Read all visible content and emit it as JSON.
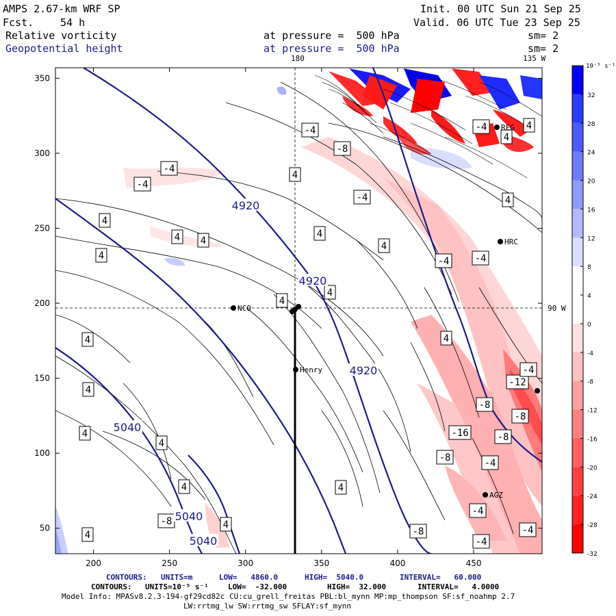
{
  "header": {
    "model": "AMPS 2.67-km WRF SP",
    "fcst_label": "Fcst.",
    "fcst_value": "54 h",
    "init": "Init. 00 UTC Sun 21 Sep 25",
    "valid": "Valid. 06 UTC Tue 23 Sep 25",
    "field1": "Relative vorticity",
    "field1_level": "at pressure =  500 hPa",
    "field1_sm": "sm= 2",
    "field2": "Geopotential height",
    "field2_level": "at pressure =  500 hPa",
    "field2_sm": "sm= 2"
  },
  "map_labels": {
    "lon_180": "180",
    "lon_135w": "135 W",
    "lon_90w": "90 W"
  },
  "stations": [
    "NCO",
    "Henry",
    "HRC",
    "AGZ",
    "REG"
  ],
  "colorbar": {
    "unit": "10⁻⁵ s⁻¹",
    "labels": [
      "32",
      "28",
      "24",
      "20",
      "16",
      "12",
      "8",
      "4",
      "0",
      "-4",
      "-8",
      "-12",
      "-16",
      "-20",
      "-24",
      "-28",
      "-32"
    ],
    "colors": [
      "#0000ff",
      "#2a3dff",
      "#4a5cff",
      "#6d7cff",
      "#8f9aff",
      "#b3bbff",
      "#d9ddff",
      "#ffffff",
      "#ffffff",
      "#ffe0e0",
      "#ffc0c0",
      "#ffa0a0",
      "#ff8080",
      "#ff6060",
      "#ff4040",
      "#ff2020",
      "#ff0000"
    ]
  },
  "chart_data": {
    "type": "contour",
    "x_ticks": [
      200,
      250,
      300,
      350,
      400,
      450
    ],
    "y_ticks": [
      50,
      100,
      150,
      200,
      250,
      300,
      350
    ],
    "xlim": [
      175,
      495
    ],
    "ylim": [
      33,
      357
    ],
    "height_contours": {
      "field": "Geopotential height",
      "labels": [
        "4920",
        "4920",
        "4920",
        "5040",
        "5040",
        "5040"
      ]
    },
    "vorticity_labels": [
      "-4",
      "-4",
      "-4",
      "-8",
      "-4",
      "4",
      "4",
      "4",
      "4",
      "4",
      "4",
      "4",
      "4",
      "-4",
      "-4",
      "4",
      "4",
      "4",
      "4",
      "-8",
      "4",
      "-8",
      "4",
      "-12",
      "-8",
      "4",
      "4",
      "-16",
      "-8",
      "-4",
      "-8",
      "-8",
      "4",
      "-4",
      "4",
      "-4",
      "-4",
      "-4",
      "4",
      "4",
      "4",
      "-4"
    ]
  },
  "footer": {
    "contours1_label": "CONTOURS:",
    "contours1_units": "UNITS=m",
    "contours1_low": "LOW=   4860.0",
    "contours1_high": "HIGH=  5040.0",
    "contours1_interval": "INTERVAL=   60.000",
    "contours2_label": "CONTOURS:",
    "contours2_units": "UNITS=10⁻⁵ s⁻¹",
    "contours2_low": "LOW=  -32.000",
    "contours2_high": "HIGH=  32.000",
    "contours2_interval": "INTERVAL=   4.0000",
    "model_info": "Model Info: MPASv8.2.3-194-gf29cd82c CU:cu_grell_freitas PBL:bl_mynn MP:mp_thompson SF:sf_noahmp 2.7",
    "model_info2": "LW:rrtmg_lw SW:rrtmg_sw SFLAY:sf_mynn"
  }
}
